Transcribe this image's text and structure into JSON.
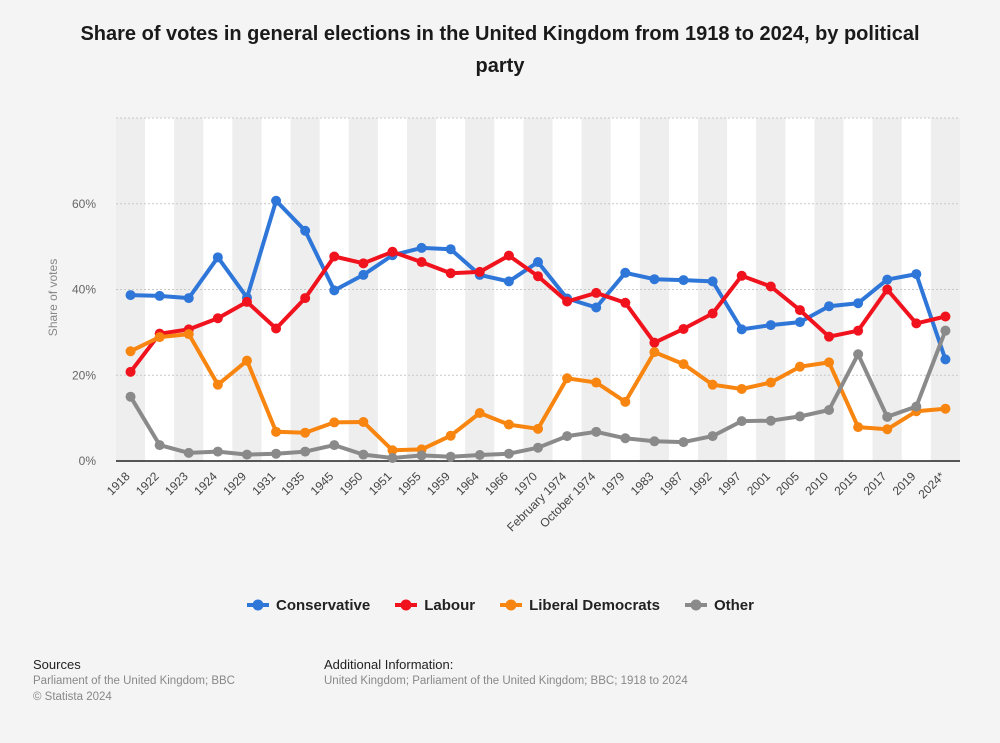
{
  "title": "Share of votes in general elections in the United Kingdom from 1918 to 2024, by political party",
  "chart_data": {
    "type": "line",
    "title": "Share of votes in general elections in the United Kingdom from 1918 to 2024, by political party",
    "ylabel": "Share of votes",
    "xlabel": "",
    "ylim": [
      0,
      80
    ],
    "yticks": [
      0,
      20,
      40,
      60
    ],
    "ytick_labels": [
      "0%",
      "20%",
      "40%",
      "60%"
    ],
    "grid": true,
    "legend_position": "bottom",
    "categories": [
      "1918",
      "1922",
      "1923",
      "1924",
      "1929",
      "1931",
      "1935",
      "1945",
      "1950",
      "1951",
      "1955",
      "1959",
      "1964",
      "1966",
      "1970",
      "February 1974",
      "October 1974",
      "1979",
      "1983",
      "1987",
      "1992",
      "1997",
      "2001",
      "2005",
      "2010",
      "2015",
      "2017",
      "2019",
      "2024*"
    ],
    "series": [
      {
        "name": "Conservative",
        "color": "#2f76d9",
        "values": [
          38.7,
          38.5,
          38.0,
          47.5,
          38.1,
          60.7,
          53.7,
          39.8,
          43.4,
          48.0,
          49.7,
          49.4,
          43.4,
          41.9,
          46.4,
          37.9,
          35.8,
          43.9,
          42.4,
          42.2,
          41.9,
          30.7,
          31.7,
          32.4,
          36.1,
          36.8,
          42.3,
          43.6,
          23.7
        ]
      },
      {
        "name": "Labour",
        "color": "#f0131e",
        "values": [
          20.8,
          29.7,
          30.7,
          33.3,
          37.1,
          30.9,
          38.0,
          47.7,
          46.1,
          48.8,
          46.4,
          43.8,
          44.1,
          47.9,
          43.1,
          37.2,
          39.2,
          36.9,
          27.6,
          30.8,
          34.4,
          43.2,
          40.7,
          35.2,
          29.0,
          30.4,
          40.0,
          32.1,
          33.7
        ]
      },
      {
        "name": "Liberal Democrats",
        "color": "#f7850f",
        "values": [
          25.6,
          28.9,
          29.6,
          17.8,
          23.4,
          6.8,
          6.6,
          9.0,
          9.1,
          2.5,
          2.7,
          5.9,
          11.2,
          8.5,
          7.5,
          19.3,
          18.3,
          13.8,
          25.4,
          22.6,
          17.8,
          16.8,
          18.3,
          22.0,
          23.0,
          7.9,
          7.4,
          11.6,
          12.2
        ]
      },
      {
        "name": "Other",
        "color": "#8a8a8a",
        "values": [
          15.0,
          3.7,
          1.9,
          2.2,
          1.5,
          1.7,
          2.2,
          3.7,
          1.5,
          0.7,
          1.3,
          1.0,
          1.4,
          1.7,
          3.1,
          5.8,
          6.8,
          5.3,
          4.6,
          4.4,
          5.8,
          9.3,
          9.4,
          10.4,
          11.9,
          24.9,
          10.3,
          12.7,
          30.4
        ]
      }
    ]
  },
  "legend": {
    "items": [
      {
        "label": "Conservative",
        "color": "#2f76d9"
      },
      {
        "label": "Labour",
        "color": "#f0131e"
      },
      {
        "label": "Liberal Democrats",
        "color": "#f7850f"
      },
      {
        "label": "Other",
        "color": "#8a8a8a"
      }
    ]
  },
  "footer": {
    "sources_heading": "Sources",
    "sources_line1": "Parliament of the United Kingdom; BBC",
    "sources_line2": "© Statista 2024",
    "info_heading": "Additional Information:",
    "info_line": "United Kingdom; Parliament of the United Kingdom; BBC; 1918 to 2024"
  }
}
